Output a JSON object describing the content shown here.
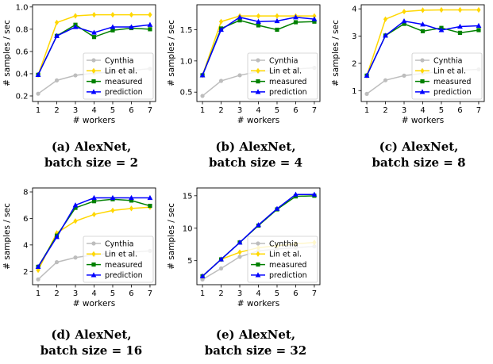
{
  "colors": {
    "Cynthia": "#bdbdbd",
    "Lin et al.": "#ffd700",
    "measured": "#008000",
    "prediction": "#0000ff"
  },
  "markers": {
    "Cynthia": "circle",
    "Lin et al.": "diamond",
    "measured": "square",
    "prediction": "triangle"
  },
  "chart_data": [
    {
      "type": "line",
      "caption": [
        "(a) AlexNet,",
        "batch size = 2"
      ],
      "xlabel": "# workers",
      "ylabel": "# samples / sec",
      "x": [
        1,
        2,
        3,
        4,
        5,
        6,
        7
      ],
      "xlim": [
        0.7,
        7.3
      ],
      "ylim": [
        0.15,
        1.02
      ],
      "yticks": [
        0.2,
        0.4,
        0.6,
        0.8,
        1.0
      ],
      "ytick_labels": [
        "0.2",
        "0.4",
        "0.6",
        "0.8",
        "1.0"
      ],
      "legend": "bottom-right",
      "series": [
        {
          "name": "Cynthia",
          "values": [
            0.22,
            0.34,
            0.385,
            0.405,
            0.415,
            0.43,
            0.445
          ]
        },
        {
          "name": "Lin et al.",
          "values": [
            0.39,
            0.86,
            0.92,
            0.93,
            0.93,
            0.93,
            0.93
          ]
        },
        {
          "name": "measured",
          "values": [
            0.39,
            0.74,
            0.84,
            0.73,
            0.79,
            0.81,
            0.8
          ]
        },
        {
          "name": "prediction",
          "values": [
            0.39,
            0.74,
            0.82,
            0.77,
            0.82,
            0.82,
            0.84
          ]
        }
      ]
    },
    {
      "type": "line",
      "caption": [
        "(b) AlexNet,",
        "batch size = 4"
      ],
      "xlabel": "# workers",
      "ylabel": "# samples / sec",
      "x": [
        1,
        2,
        3,
        4,
        5,
        6,
        7
      ],
      "xlim": [
        0.7,
        7.3
      ],
      "ylim": [
        0.35,
        1.9
      ],
      "yticks": [
        0.5,
        1.0,
        1.5
      ],
      "ytick_labels": [
        "0.5",
        "1.0",
        "1.5"
      ],
      "legend": "bottom-right",
      "series": [
        {
          "name": "Cynthia",
          "values": [
            0.44,
            0.68,
            0.77,
            0.83,
            0.85,
            0.87,
            0.89
          ]
        },
        {
          "name": "Lin et al.",
          "values": [
            0.77,
            1.63,
            1.72,
            1.72,
            1.72,
            1.72,
            1.72
          ]
        },
        {
          "name": "measured",
          "values": [
            0.77,
            1.52,
            1.65,
            1.57,
            1.5,
            1.62,
            1.63
          ]
        },
        {
          "name": "prediction",
          "values": [
            0.77,
            1.5,
            1.7,
            1.63,
            1.64,
            1.7,
            1.67
          ]
        }
      ]
    },
    {
      "type": "line",
      "caption": [
        "(c) AlexNet,",
        "batch size = 8"
      ],
      "xlabel": "# workers",
      "ylabel": "# samples / sec",
      "x": [
        1,
        2,
        3,
        4,
        5,
        6,
        7
      ],
      "xlim": [
        0.7,
        7.3
      ],
      "ylim": [
        0.6,
        4.15
      ],
      "yticks": [
        1,
        2,
        3,
        4
      ],
      "ytick_labels": [
        "1",
        "2",
        "3",
        "4"
      ],
      "legend": "bottom-right",
      "series": [
        {
          "name": "Cynthia",
          "values": [
            0.88,
            1.38,
            1.55,
            1.63,
            1.7,
            1.75,
            1.78
          ]
        },
        {
          "name": "Lin et al.",
          "values": [
            1.55,
            3.62,
            3.9,
            3.95,
            3.96,
            3.96,
            3.96
          ]
        },
        {
          "name": "measured",
          "values": [
            1.55,
            3.02,
            3.45,
            3.18,
            3.3,
            3.12,
            3.22
          ]
        },
        {
          "name": "prediction",
          "values": [
            1.55,
            3.02,
            3.55,
            3.43,
            3.22,
            3.35,
            3.38
          ]
        }
      ]
    },
    {
      "type": "line",
      "caption": [
        "(d) AlexNet,",
        "batch size = 16"
      ],
      "xlabel": "# workers",
      "ylabel": "# samples / sec",
      "x": [
        1,
        2,
        3,
        4,
        5,
        6,
        7
      ],
      "xlim": [
        0.7,
        7.3
      ],
      "ylim": [
        1.0,
        8.3
      ],
      "yticks": [
        2,
        4,
        6,
        8
      ],
      "ytick_labels": [
        "2",
        "4",
        "6",
        "8"
      ],
      "legend": "bottom-right",
      "series": [
        {
          "name": "Cynthia",
          "values": [
            1.4,
            2.7,
            3.05,
            3.25,
            3.38,
            3.45,
            3.55
          ]
        },
        {
          "name": "Lin et al.",
          "values": [
            2.1,
            4.9,
            5.8,
            6.3,
            6.6,
            6.75,
            6.85
          ]
        },
        {
          "name": "measured",
          "values": [
            2.35,
            4.7,
            6.8,
            7.3,
            7.45,
            7.35,
            6.95
          ]
        },
        {
          "name": "prediction",
          "values": [
            2.35,
            4.6,
            7.0,
            7.55,
            7.55,
            7.55,
            7.55
          ]
        }
      ]
    },
    {
      "type": "line",
      "caption": [
        "(e) AlexNet,",
        "batch size = 32"
      ],
      "xlabel": "# workers",
      "ylabel": "# samples / sec",
      "x": [
        1,
        2,
        3,
        4,
        5,
        6,
        7
      ],
      "xlim": [
        0.7,
        7.3
      ],
      "ylim": [
        1.3,
        16.2
      ],
      "yticks": [
        5,
        10,
        15
      ],
      "ytick_labels": [
        "5",
        "10",
        "15"
      ],
      "legend": "bottom-right",
      "series": [
        {
          "name": "Cynthia",
          "values": [
            2.1,
            3.8,
            5.6,
            6.5,
            6.8,
            7.0,
            7.2
          ]
        },
        {
          "name": "Lin et al.",
          "values": [
            2.6,
            5.2,
            6.3,
            7.0,
            7.3,
            7.6,
            7.8
          ]
        },
        {
          "name": "measured",
          "values": [
            2.6,
            5.2,
            7.8,
            10.4,
            12.9,
            14.9,
            15.0
          ]
        },
        {
          "name": "prediction",
          "values": [
            2.6,
            5.2,
            7.8,
            10.5,
            13.0,
            15.2,
            15.2
          ]
        }
      ]
    }
  ]
}
